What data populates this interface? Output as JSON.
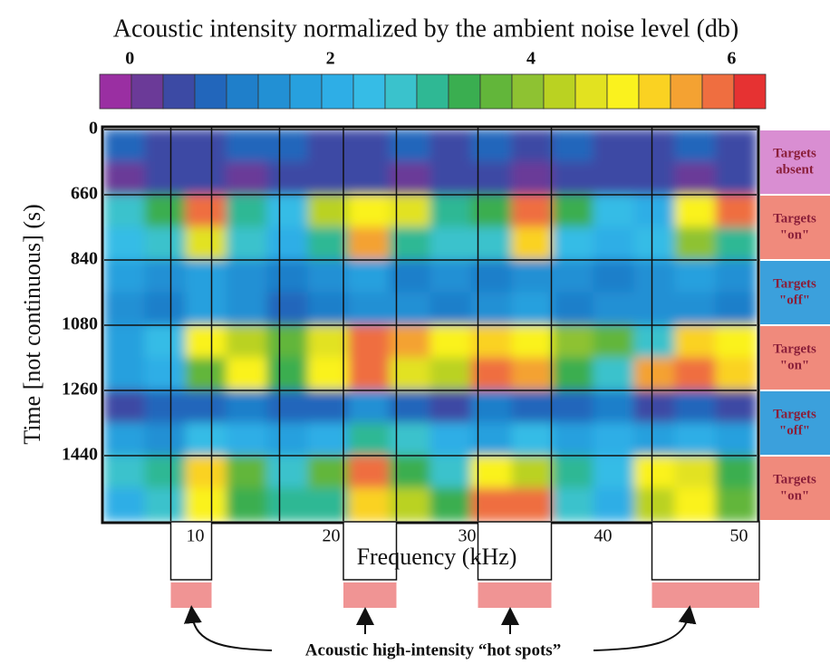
{
  "chart_data": {
    "type": "heatmap",
    "title": "Acoustic intensity normalized by the ambient noise level (db)",
    "colorbar": {
      "clim": [
        -0.3,
        6.34
      ],
      "ticks": [
        0,
        2,
        4,
        6
      ],
      "colors": [
        "#9a2fa2",
        "#6b3a98",
        "#3c4aa4",
        "#2266bb",
        "#1f7fca",
        "#2290d4",
        "#27a0de",
        "#2eaee6",
        "#36bce6",
        "#3ac2cc",
        "#2fb894",
        "#3aae50",
        "#62b63a",
        "#8ec232",
        "#bad222",
        "#e2e220",
        "#faf21e",
        "#fad222",
        "#f4a232",
        "#ef6e40",
        "#e63232"
      ]
    },
    "y_label": "Time [not continuous] (s)",
    "yticks": [
      0,
      660,
      840,
      1080,
      1260,
      1440
    ],
    "x_label": "Frequency (kHz)",
    "xlim": [
      3.3,
      51.3
    ],
    "xticks": [
      10,
      20,
      30,
      40,
      50
    ],
    "vlines": [
      8.2,
      11.2,
      16.2,
      20.9,
      24.8,
      30.8,
      36.2,
      43.6
    ],
    "segments": [
      {
        "label": [
          "Targets",
          "absent"
        ],
        "color": "#d98ed2"
      },
      {
        "label": [
          "Targets",
          "\"on\""
        ],
        "color": "#f08a7c"
      },
      {
        "label": [
          "Targets",
          "\"off\""
        ],
        "color": "#3ba0dc"
      },
      {
        "label": [
          "Targets",
          "\"on\""
        ],
        "color": "#f08a7c"
      },
      {
        "label": [
          "Targets",
          "\"off\""
        ],
        "color": "#3ba0dc"
      },
      {
        "label": [
          "Targets",
          "\"on\""
        ],
        "color": "#f08a7c"
      }
    ],
    "z": [
      [
        0.8,
        0.5,
        0.6,
        0.9,
        0.7,
        0.5,
        0.6,
        0.8,
        0.5,
        0.7,
        0.6,
        0.9,
        0.5,
        0.6,
        0.8,
        0.5
      ],
      [
        0.3,
        0.4,
        0.5,
        0.3,
        0.4,
        0.6,
        0.5,
        0.3,
        0.4,
        0.5,
        0.3,
        0.4,
        0.6,
        0.4,
        0.3,
        0.5
      ],
      [
        2.8,
        3.2,
        5.8,
        3.0,
        2.5,
        4.2,
        5.0,
        4.6,
        3.0,
        3.4,
        6.0,
        3.2,
        2.4,
        2.2,
        5.0,
        5.8
      ],
      [
        2.4,
        2.8,
        4.5,
        2.6,
        2.2,
        3.0,
        5.5,
        3.0,
        2.6,
        2.8,
        5.2,
        2.5,
        2.0,
        2.4,
        4.0,
        3.0
      ],
      [
        1.6,
        1.4,
        1.8,
        1.3,
        1.0,
        1.5,
        1.6,
        1.2,
        1.4,
        1.2,
        1.3,
        1.5,
        1.1,
        1.4,
        1.6,
        1.5
      ],
      [
        1.5,
        1.2,
        1.6,
        1.4,
        0.9,
        1.2,
        1.4,
        1.5,
        1.0,
        1.3,
        1.6,
        1.2,
        1.5,
        1.3,
        1.4,
        1.2
      ],
      [
        1.8,
        2.5,
        5.0,
        4.2,
        3.8,
        4.5,
        6.0,
        5.5,
        5.0,
        5.2,
        4.8,
        4.0,
        3.6,
        2.8,
        5.2,
        4.8
      ],
      [
        1.6,
        2.2,
        3.6,
        4.8,
        3.4,
        5.0,
        6.0,
        4.6,
        4.2,
        5.8,
        5.4,
        3.4,
        2.8,
        5.6,
        5.8,
        5.2
      ],
      [
        0.6,
        0.9,
        0.8,
        1.2,
        0.7,
        0.9,
        1.5,
        0.8,
        0.6,
        1.0,
        0.7,
        0.9,
        1.2,
        0.5,
        0.7,
        0.6
      ],
      [
        1.6,
        1.4,
        2.5,
        2.0,
        1.8,
        2.2,
        3.0,
        2.6,
        2.2,
        1.8,
        2.4,
        1.8,
        2.2,
        1.6,
        2.0,
        1.8
      ],
      [
        2.6,
        3.0,
        5.2,
        3.8,
        2.8,
        3.6,
        6.0,
        3.4,
        2.8,
        5.0,
        4.2,
        3.0,
        2.4,
        4.8,
        4.6,
        3.2
      ],
      [
        2.2,
        2.6,
        5.0,
        3.2,
        3.0,
        3.0,
        5.2,
        4.4,
        3.2,
        5.8,
        6.0,
        2.8,
        2.2,
        4.2,
        5.0,
        3.6
      ]
    ],
    "hot_spots": {
      "label": "Acoustic high-intensity “hot spots”",
      "color": "#f09494",
      "ranges": [
        [
          8.2,
          11.2
        ],
        [
          20.9,
          24.8
        ],
        [
          30.8,
          36.2
        ],
        [
          43.6,
          51.5
        ]
      ]
    }
  }
}
